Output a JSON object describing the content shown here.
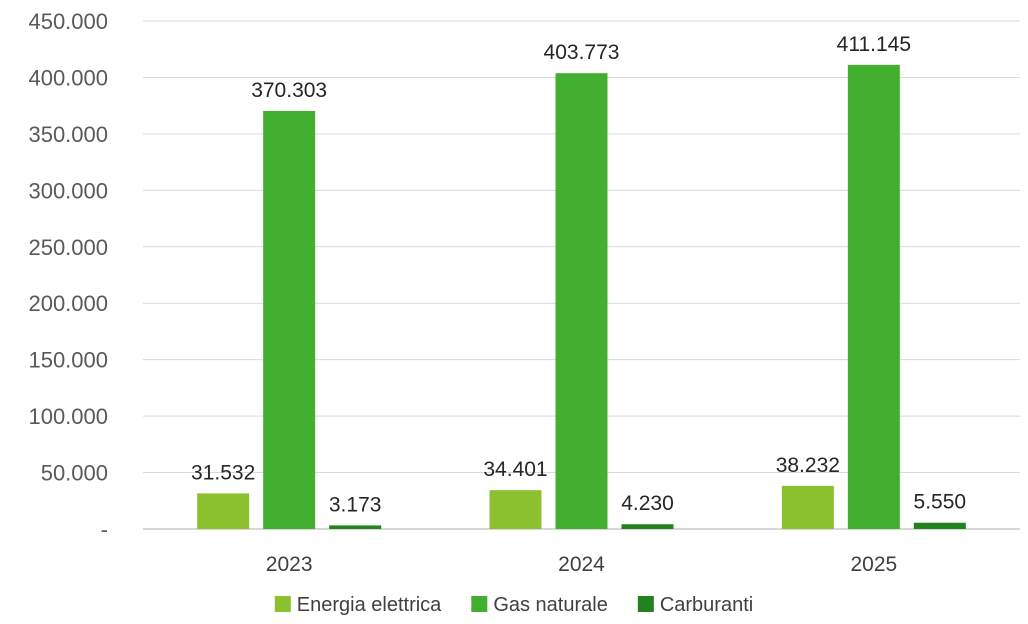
{
  "chart_data": {
    "type": "bar",
    "categories": [
      "2023",
      "2024",
      "2025"
    ],
    "series": [
      {
        "name": "Energia elettrica",
        "color": "#8bc02f",
        "values": [
          31532,
          34401,
          38232
        ],
        "labels": [
          "31.532",
          "34.401",
          "38.232"
        ]
      },
      {
        "name": "Gas naturale",
        "color": "#42b02e",
        "values": [
          370303,
          403773,
          411145
        ],
        "labels": [
          "370.303",
          "403.773",
          "411.145"
        ]
      },
      {
        "name": "Carburanti",
        "color": "#21821e",
        "values": [
          3173,
          4230,
          5550
        ],
        "labels": [
          "3.173",
          "4.230",
          "5.550"
        ]
      }
    ],
    "ylim": [
      0,
      450000
    ],
    "yticks": [
      0,
      50000,
      100000,
      150000,
      200000,
      250000,
      300000,
      350000,
      400000,
      450000
    ],
    "ytick_labels": [
      "-",
      "50.000",
      "100.000",
      "150.000",
      "200.000",
      "250.000",
      "300.000",
      "350.000",
      "400.000",
      "450.000"
    ],
    "grid": true,
    "legend_position": "bottom"
  }
}
